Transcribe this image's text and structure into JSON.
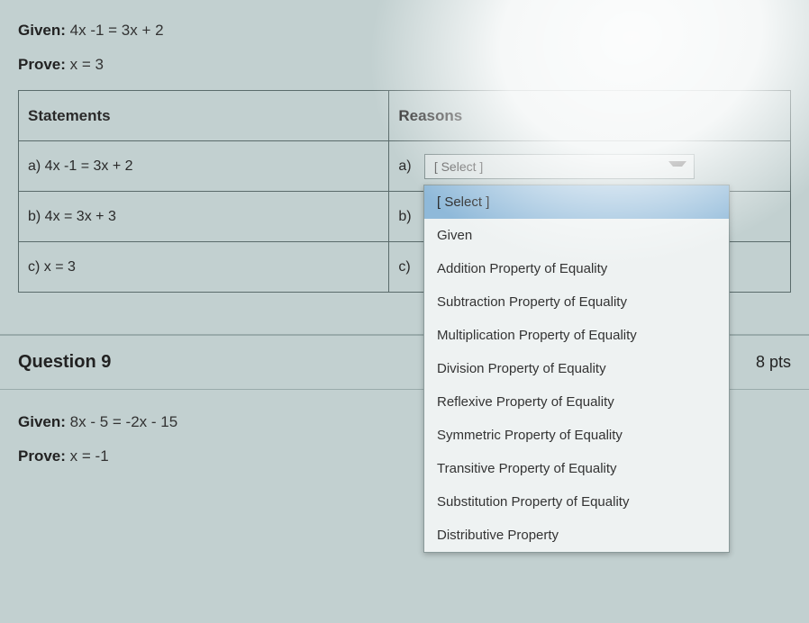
{
  "proof1": {
    "given_label": "Given:",
    "given_text": "4x -1 = 3x + 2",
    "prove_label": "Prove:",
    "prove_text": "x = 3",
    "headers": {
      "statements": "Statements",
      "reasons": "Reasons"
    },
    "rows": [
      {
        "stmt": "a) 4x -1 = 3x + 2",
        "prefix": "a)"
      },
      {
        "stmt": "b) 4x = 3x + 3",
        "prefix": "b)"
      },
      {
        "stmt": "c) x = 3",
        "prefix": "c)"
      }
    ],
    "select_placeholder": "[ Select ]"
  },
  "dropdown": {
    "options": [
      "[ Select ]",
      "Given",
      "Addition Property of Equality",
      "Subtraction Property of Equality",
      "Multiplication Property of Equality",
      "Division Property of Equality",
      "Reflexive Property of Equality",
      "Symmetric Property of Equality",
      "Transitive Property of Equality",
      "Substitution Property of Equality",
      "Distributive Property"
    ],
    "selected_index": 0
  },
  "question9": {
    "title": "Question 9",
    "points": "8 pts",
    "given_label": "Given:",
    "given_text": "8x - 5 = -2x - 15",
    "prove_label": "Prove:",
    "prove_text": "x = -1"
  }
}
